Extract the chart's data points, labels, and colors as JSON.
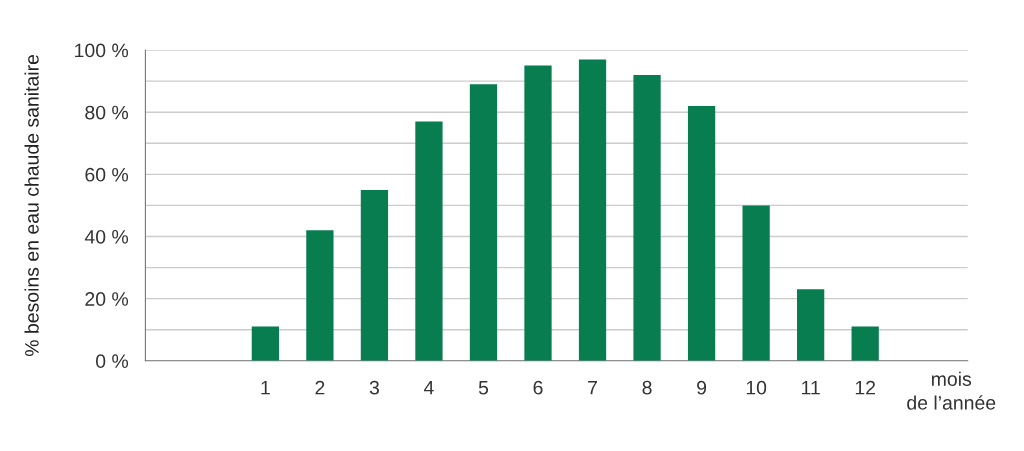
{
  "chart_data": {
    "type": "bar",
    "categories": [
      "1",
      "2",
      "3",
      "4",
      "5",
      "6",
      "7",
      "8",
      "9",
      "10",
      "11",
      "12"
    ],
    "values": [
      11,
      42,
      55,
      77,
      89,
      95,
      97,
      92,
      82,
      50,
      23,
      11
    ],
    "color": "#077d50",
    "xlabel": "mois\nde l’année",
    "ylabel": "% besoins en eau chaude sanitaire",
    "ylim": [
      0,
      100
    ],
    "yticks": [
      {
        "value": 0,
        "label": "0 %"
      },
      {
        "value": 10,
        "label": null
      },
      {
        "value": 20,
        "label": "20 %"
      },
      {
        "value": 30,
        "label": null
      },
      {
        "value": 40,
        "label": "40 %"
      },
      {
        "value": 50,
        "label": null
      },
      {
        "value": 60,
        "label": "60 %"
      },
      {
        "value": 70,
        "label": null
      },
      {
        "value": 80,
        "label": "80 %"
      },
      {
        "value": 90,
        "label": null
      },
      {
        "value": 100,
        "label": "100 %"
      }
    ],
    "grid": "y",
    "legend": false
  }
}
